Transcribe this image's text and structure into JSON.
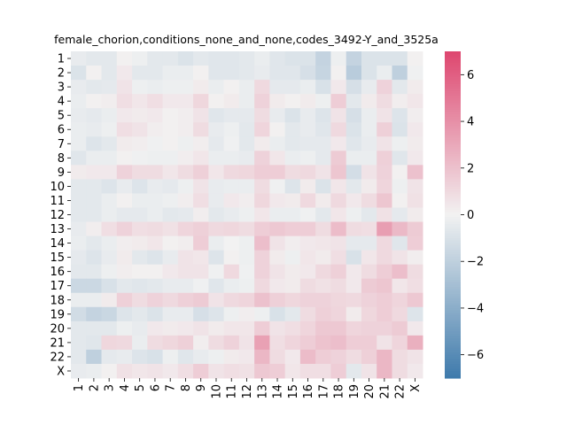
{
  "chart_data": {
    "type": "heatmap",
    "title": "female_chorion,conditions_none_and_none,codes_3492-Y_and_3525a",
    "rows": [
      "1",
      "2",
      "3",
      "4",
      "5",
      "6",
      "7",
      "8",
      "9",
      "10",
      "11",
      "12",
      "13",
      "14",
      "15",
      "16",
      "17",
      "18",
      "19",
      "20",
      "21",
      "22",
      "X"
    ],
    "cols": [
      "1",
      "2",
      "3",
      "4",
      "5",
      "6",
      "7",
      "8",
      "9",
      "10",
      "11",
      "12",
      "13",
      "14",
      "15",
      "16",
      "17",
      "18",
      "19",
      "20",
      "21",
      "22",
      "X"
    ],
    "values": [
      [
        -0.4,
        -0.6,
        -0.6,
        0.1,
        -0.2,
        -0.6,
        -0.6,
        -0.9,
        -0.6,
        -0.7,
        -0.7,
        -0.6,
        -0.3,
        -0.7,
        -0.9,
        -0.9,
        -1.8,
        -0.2,
        -1.8,
        -0.9,
        -0.9,
        -0.9,
        0.1
      ],
      [
        -0.9,
        0.1,
        -0.6,
        0.4,
        -0.6,
        -0.6,
        -0.3,
        -0.3,
        0.1,
        -0.7,
        -0.7,
        -0.6,
        -0.4,
        -0.7,
        -0.7,
        -1.1,
        -1.7,
        0.1,
        -2.2,
        -0.9,
        -0.3,
        -2.0,
        -0.1
      ],
      [
        -0.4,
        -0.6,
        -0.5,
        0.6,
        -0.2,
        -0.3,
        -0.2,
        -0.2,
        0.3,
        -0.3,
        0.1,
        -0.3,
        1.0,
        -0.5,
        -0.5,
        -0.3,
        -1.0,
        0.4,
        -1.1,
        -0.4,
        1.3,
        -0.6,
        0.3
      ],
      [
        -0.3,
        0.1,
        0.2,
        0.8,
        0.5,
        0.8,
        0.4,
        0.4,
        1.1,
        0.1,
        0.3,
        -0.3,
        1.3,
        0.3,
        0.1,
        0.3,
        -0.2,
        1.5,
        -0.6,
        0.3,
        0.9,
        0.2,
        0.5
      ],
      [
        -0.4,
        -0.5,
        -0.3,
        0.4,
        0.3,
        0.4,
        0.1,
        0.2,
        0.6,
        -0.7,
        -0.5,
        -0.5,
        0.9,
        -0.4,
        -0.9,
        -0.4,
        -0.8,
        0.6,
        -1.1,
        -0.3,
        0.6,
        -0.8,
        0.2
      ],
      [
        -0.3,
        -0.4,
        -0.2,
        0.8,
        0.6,
        0.2,
        0.1,
        0.2,
        0.9,
        -0.4,
        -0.2,
        -0.6,
        1.2,
        0.1,
        -0.6,
        -0.4,
        -0.7,
        1.0,
        -0.9,
        -0.3,
        1.4,
        -0.9,
        0.4
      ],
      [
        -0.3,
        -0.8,
        -0.6,
        0.3,
        0.2,
        -0.1,
        0.1,
        -0.2,
        0.2,
        -0.5,
        -0.1,
        -0.6,
        0.3,
        -0.3,
        -0.6,
        -0.5,
        -0.5,
        0.4,
        -0.7,
        -0.4,
        0.6,
        -0.2,
        0.3
      ],
      [
        -0.7,
        -0.3,
        -0.3,
        0.1,
        -0.1,
        -0.2,
        -0.2,
        0.2,
        0.5,
        -0.3,
        -0.3,
        -0.4,
        1.3,
        0.5,
        -0.3,
        -0.2,
        -0.5,
        1.6,
        -0.3,
        -0.3,
        1.4,
        -0.7,
        0.4
      ],
      [
        0.3,
        0.4,
        0.4,
        1.3,
        0.9,
        0.9,
        0.5,
        0.9,
        1.4,
        0.5,
        1.0,
        1.1,
        1.5,
        1.5,
        0.9,
        1.0,
        0.6,
        1.8,
        -1.2,
        0.6,
        1.3,
        0.1,
        2.0
      ],
      [
        -0.6,
        -0.6,
        -0.8,
        -0.4,
        -0.8,
        -0.4,
        -0.5,
        -0.2,
        0.6,
        -0.4,
        -0.3,
        -0.3,
        0.9,
        -0.1,
        -0.8,
        0.3,
        -0.9,
        0.5,
        -0.6,
        0.3,
        1.2,
        -0.2,
        0.6
      ],
      [
        -0.6,
        -0.6,
        -0.3,
        0.1,
        -0.3,
        -0.3,
        -0.2,
        0.2,
        0.8,
        -0.4,
        0.4,
        0.2,
        1.1,
        0.4,
        0.3,
        1.0,
        0.3,
        1.0,
        0.4,
        0.9,
        1.8,
        0.1,
        0.7
      ],
      [
        -0.6,
        -0.6,
        -0.3,
        -0.5,
        -0.5,
        -0.3,
        -0.6,
        -0.5,
        0.2,
        -0.6,
        -0.4,
        -0.2,
        0.5,
        -0.3,
        -0.3,
        -0.1,
        -0.6,
        0.5,
        -0.2,
        -0.6,
        0.7,
        -0.5,
        0.3
      ],
      [
        -0.4,
        0.2,
        0.8,
        1.3,
        0.8,
        0.9,
        0.7,
        1.2,
        1.4,
        1.0,
        1.1,
        0.9,
        1.5,
        1.7,
        1.5,
        1.5,
        0.9,
        2.2,
        0.9,
        0.8,
        3.4,
        2.3,
        1.6
      ],
      [
        -0.3,
        -0.6,
        -0.3,
        0.2,
        0.3,
        0.5,
        0.1,
        0.2,
        1.5,
        -0.3,
        0.0,
        -0.2,
        2.1,
        0.6,
        0.2,
        0.4,
        0.5,
        0.6,
        -0.5,
        -0.5,
        1.0,
        -0.7,
        1.5
      ],
      [
        -0.5,
        -0.8,
        -0.4,
        0.3,
        -0.6,
        -0.8,
        -0.4,
        0.6,
        0.5,
        -0.8,
        0.1,
        -0.2,
        1.3,
        0.3,
        -0.2,
        0.5,
        0.3,
        0.8,
        -1.0,
        0.5,
        1.0,
        0.6,
        0.2
      ],
      [
        -0.6,
        -0.6,
        -0.2,
        0.2,
        0.1,
        0.1,
        0.4,
        0.6,
        0.6,
        -0.1,
        1.0,
        -0.1,
        1.3,
        0.6,
        0.3,
        0.4,
        1.0,
        1.4,
        0.4,
        0.9,
        1.5,
        2.1,
        0.9
      ],
      [
        -1.5,
        -1.5,
        -1.0,
        -0.6,
        -0.7,
        -0.6,
        -0.4,
        -0.4,
        -0.1,
        -0.7,
        -0.3,
        -0.2,
        1.0,
        0.4,
        0.3,
        0.9,
        0.7,
        0.9,
        0.4,
        1.6,
        1.8,
        0.5,
        0.8
      ],
      [
        -0.3,
        -0.3,
        0.3,
        1.4,
        0.9,
        1.3,
        1.0,
        1.4,
        1.6,
        0.6,
        1.0,
        1.2,
        2.0,
        1.4,
        1.1,
        1.3,
        1.3,
        1.1,
        1.0,
        1.3,
        1.5,
        1.2,
        1.7
      ],
      [
        -1.3,
        -1.8,
        -1.6,
        -0.8,
        -0.6,
        -0.9,
        -0.4,
        -0.4,
        -1.1,
        -0.8,
        -0.2,
        0.2,
        -0.2,
        -1.0,
        -0.6,
        0.9,
        1.4,
        1.2,
        0.3,
        1.1,
        1.5,
        1.0,
        -0.8
      ],
      [
        -0.6,
        -0.6,
        -0.6,
        -0.2,
        -0.4,
        0.4,
        0.3,
        0.4,
        0.6,
        0.3,
        0.5,
        0.5,
        1.5,
        0.6,
        0.8,
        1.2,
        1.7,
        1.7,
        1.2,
        1.3,
        1.3,
        1.6,
        0.4
      ],
      [
        -0.6,
        -0.7,
        1.1,
        1.0,
        -0.3,
        0.9,
        1.1,
        1.4,
        0.2,
        0.9,
        1.3,
        0.6,
        3.3,
        0.8,
        1.2,
        1.5,
        1.9,
        2.1,
        1.5,
        1.5,
        0.6,
        1.2,
        2.7
      ],
      [
        -0.6,
        -2.0,
        -0.5,
        -0.4,
        -0.8,
        -1.0,
        -0.2,
        -0.7,
        -0.4,
        -0.2,
        0.3,
        0.4,
        2.4,
        0.9,
        0.4,
        2.2,
        1.5,
        1.3,
        0.9,
        1.4,
        2.4,
        0.9,
        0.6
      ],
      [
        -0.4,
        -0.3,
        0.1,
        0.7,
        0.5,
        0.6,
        0.4,
        0.8,
        1.5,
        0.6,
        0.8,
        0.7,
        1.7,
        1.5,
        0.5,
        0.8,
        0.8,
        1.5,
        -0.6,
        0.6,
        2.4,
        0.9,
        0.4
      ]
    ],
    "vmin": -7,
    "vmax": 7,
    "colorbar_ticks": [
      -6,
      -4,
      -2,
      0,
      2,
      4,
      6
    ],
    "colorbar_tick_labels": [
      "−6",
      "−4",
      "−2",
      "0",
      "2",
      "4",
      "6"
    ],
    "colormap": {
      "negative": "#3e7aab",
      "center": "#f2f2f2",
      "positive": "#de466f"
    }
  }
}
